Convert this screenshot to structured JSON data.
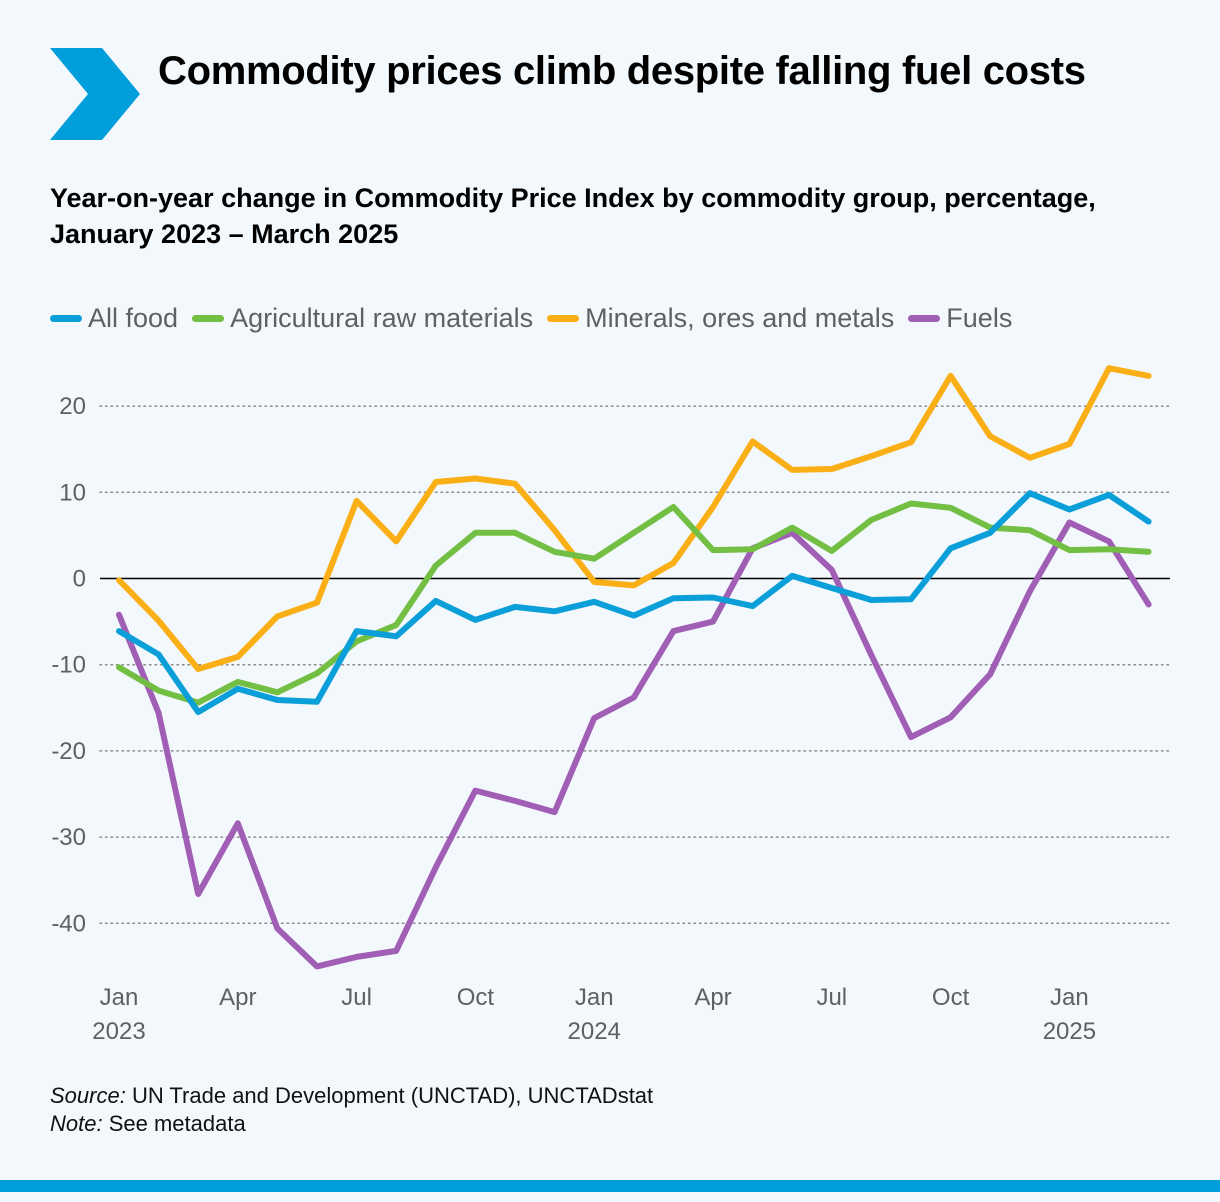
{
  "header": {
    "title": "Commodity prices climb despite falling fuel costs",
    "subtitle": "Year-on-year change in Commodity Price Index by commodity group, percentage, January 2023 – March 2025"
  },
  "colors": {
    "brand_blue": "#009edb",
    "all_food": "#0a9fd8",
    "agricultural": "#72bf44",
    "minerals": "#fbaf17",
    "fuels": "#a05eb5"
  },
  "legend": {
    "items": [
      {
        "label": "All food",
        "color": "#0a9fd8"
      },
      {
        "label": "Agricultural raw materials",
        "color": "#72bf44"
      },
      {
        "label": "Minerals, ores and metals",
        "color": "#fbaf17"
      },
      {
        "label": "Fuels",
        "color": "#a05eb5"
      }
    ]
  },
  "chart_data": {
    "type": "line",
    "title": "Commodity prices climb despite falling fuel costs",
    "subtitle": "Year-on-year change in Commodity Price Index by commodity group, percentage, January 2023 – March 2025",
    "x": [
      "2023-01",
      "2023-02",
      "2023-03",
      "2023-04",
      "2023-05",
      "2023-06",
      "2023-07",
      "2023-08",
      "2023-09",
      "2023-10",
      "2023-11",
      "2023-12",
      "2024-01",
      "2024-02",
      "2024-03",
      "2024-04",
      "2024-05",
      "2024-06",
      "2024-07",
      "2024-08",
      "2024-09",
      "2024-10",
      "2024-11",
      "2024-12",
      "2025-01",
      "2025-02",
      "2025-03"
    ],
    "x_ticks": [
      {
        "index": 0,
        "label": "Jan",
        "year": "2023"
      },
      {
        "index": 3,
        "label": "Apr",
        "year": ""
      },
      {
        "index": 6,
        "label": "Jul",
        "year": ""
      },
      {
        "index": 9,
        "label": "Oct",
        "year": ""
      },
      {
        "index": 12,
        "label": "Jan",
        "year": "2024"
      },
      {
        "index": 15,
        "label": "Apr",
        "year": ""
      },
      {
        "index": 18,
        "label": "Jul",
        "year": ""
      },
      {
        "index": 21,
        "label": "Oct",
        "year": ""
      },
      {
        "index": 24,
        "label": "Jan",
        "year": "2025"
      }
    ],
    "y_ticks": [
      20,
      10,
      0,
      -10,
      -20,
      -30,
      -40
    ],
    "ylim": [
      -47,
      27
    ],
    "grid": true,
    "legend_position": "top-left",
    "series": [
      {
        "name": "All food",
        "color": "#0a9fd8",
        "values": [
          -6.1,
          -8.8,
          -15.5,
          -12.8,
          -14.1,
          -14.3,
          -6.1,
          -6.7,
          -2.6,
          -4.8,
          -3.3,
          -3.8,
          -2.7,
          -4.3,
          -2.3,
          -2.2,
          -3.2,
          0.3,
          -1.1,
          -2.5,
          -2.4,
          3.5,
          5.3,
          9.9,
          8.0,
          9.7,
          6.6
        ]
      },
      {
        "name": "Agricultural raw materials",
        "color": "#72bf44",
        "values": [
          -10.3,
          -13.0,
          -14.4,
          -12.0,
          -13.2,
          -11.0,
          -7.3,
          -5.4,
          1.5,
          5.3,
          5.3,
          3.1,
          2.3,
          5.3,
          8.3,
          3.3,
          3.4,
          5.9,
          3.2,
          6.8,
          8.7,
          8.2,
          5.9,
          5.6,
          3.3,
          3.4,
          3.1
        ]
      },
      {
        "name": "Minerals, ores and metals",
        "color": "#fbaf17",
        "values": [
          -0.2,
          -4.9,
          -10.5,
          -9.1,
          -4.4,
          -2.8,
          9.0,
          4.3,
          11.2,
          11.6,
          11.0,
          5.6,
          -0.4,
          -0.8,
          1.8,
          8.3,
          15.9,
          12.6,
          12.7,
          14.2,
          15.8,
          23.5,
          16.5,
          14.0,
          15.6,
          24.4,
          23.5
        ]
      },
      {
        "name": "Fuels",
        "color": "#a05eb5",
        "values": [
          -4.2,
          -15.6,
          -36.6,
          -28.4,
          -40.6,
          -45.0,
          -43.9,
          -43.2,
          -33.5,
          -24.6,
          -25.8,
          -27.1,
          -16.2,
          -13.8,
          -6.1,
          -5.0,
          3.5,
          5.3,
          1.0,
          -8.9,
          -18.4,
          -16.1,
          -11.1,
          -1.5,
          6.5,
          4.3,
          -3.0
        ]
      }
    ]
  },
  "footer": {
    "source_label": "Source:",
    "source_text": " UN Trade and Development (UNCTAD), UNCTADstat",
    "note_label": "Note:",
    "note_text": " See metadata"
  }
}
